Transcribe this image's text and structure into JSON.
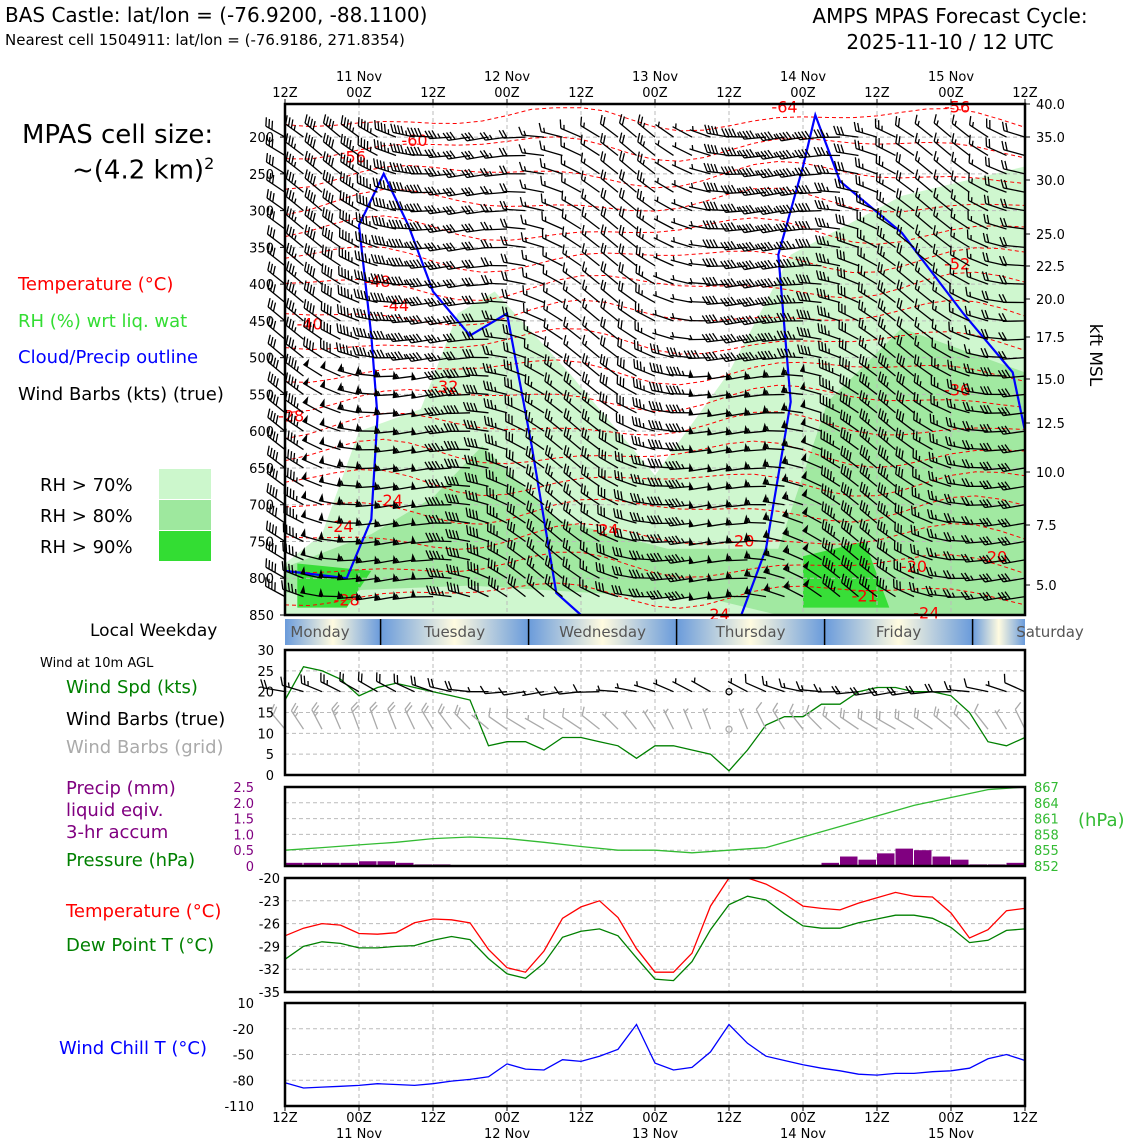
{
  "header": {
    "title_left": "BAS Castle: lat/lon = (-76.9200, -88.1100)",
    "subtitle_left": "Nearest cell 1504911: lat/lon = (-76.9186, 271.8354)",
    "cycle_line1": "AMPS MPAS Forecast Cycle:",
    "cycle_line2": "2025-11-10 / 12 UTC"
  },
  "cell_size": {
    "label": "MPAS cell size:",
    "value": "~(4.2 km)",
    "superscript": "2"
  },
  "legend_main": {
    "temperature": "Temperature (°C)",
    "rh": "RH (%) wrt liq. wat",
    "cloud": "Cloud/Precip outline",
    "wind": "Wind Barbs (kts) (true)",
    "colors": {
      "temperature": "#ff0000",
      "rh": "#33dd33",
      "cloud": "#0000ff",
      "wind": "#000000"
    }
  },
  "rh_legend": [
    {
      "label": "RH > 70%",
      "color": "#ccf7cc"
    },
    {
      "label": "RH > 80%",
      "color": "#9ee89e"
    },
    {
      "label": "RH > 90%",
      "color": "#33dd33"
    }
  ],
  "time_axis": {
    "top_labels": [
      "12Z",
      "00Z",
      "12Z",
      "00Z",
      "12Z",
      "00Z",
      "12Z",
      "00Z",
      "12Z",
      "00Z",
      "12Z"
    ],
    "date_labels": [
      "11 Nov",
      "12 Nov",
      "13 Nov",
      "14 Nov",
      "15 Nov"
    ],
    "hours": [
      0,
      12,
      24,
      36,
      48,
      60,
      72,
      84,
      96,
      108,
      120
    ]
  },
  "weekday": {
    "label": "Local Weekday",
    "days": [
      "Monday",
      "Tuesday",
      "Wednesday",
      "Thursday",
      "Friday",
      "Saturday"
    ]
  },
  "wind10m": {
    "title": "Wind at 10m AGL",
    "legend": [
      "Wind Spd (kts)",
      "Wind Barbs (true)",
      "Wind Barbs (grid)"
    ],
    "legend_colors": [
      "#008000",
      "#000000",
      "#aaaaaa"
    ]
  },
  "precip_legend": [
    "Precip (mm)",
    "liquid eqiv.",
    "3-hr accum"
  ],
  "pressure_legend": "Pressure (hPa)",
  "pressure_unit": "(hPa)",
  "tempdew_legend": [
    "Temperature (°C)",
    "Dew Point T (°C)"
  ],
  "windchill_legend": "Wind Chill T (°C)",
  "chart_data": [
    {
      "type": "heatmap",
      "name": "cross-section",
      "y_pressure_ticks": [
        200,
        250,
        300,
        350,
        400,
        450,
        500,
        550,
        600,
        650,
        700,
        750,
        800,
        850
      ],
      "y_right_kft": [
        "40.0",
        "35.0",
        "30.0",
        "25.0",
        "22.5",
        "20.0",
        "17.5",
        "15.0",
        "12.5",
        "10.0",
        "7.5",
        "5.0"
      ],
      "y_right_label": "kft MSL",
      "temperature_labels": [
        {
          "text": "-56",
          "h": 11,
          "p": 228
        },
        {
          "text": "-60",
          "h": 21,
          "p": 205
        },
        {
          "text": "-48",
          "h": 15,
          "p": 397
        },
        {
          "text": "-44",
          "h": 18,
          "p": 430
        },
        {
          "text": "-40",
          "h": 4,
          "p": 455
        },
        {
          "text": "-32",
          "h": 26,
          "p": 540
        },
        {
          "text": "-28",
          "h": 1,
          "p": 580
        },
        {
          "text": "-24",
          "h": 17,
          "p": 695
        },
        {
          "text": "-24",
          "h": 9,
          "p": 730
        },
        {
          "text": "-24",
          "h": 52,
          "p": 735
        },
        {
          "text": "-20",
          "h": 74,
          "p": 750
        },
        {
          "text": "-20",
          "h": 102,
          "p": 785
        },
        {
          "text": "-20",
          "h": 115,
          "p": 772
        },
        {
          "text": "-24",
          "h": 104,
          "p": 848
        },
        {
          "text": "-28",
          "h": 10,
          "p": 830
        },
        {
          "text": "-64",
          "h": 81,
          "p": 148
        },
        {
          "text": "-56",
          "h": 109,
          "p": 157
        },
        {
          "text": "-52",
          "h": 109,
          "p": 373
        },
        {
          "text": "-36",
          "h": 109,
          "p": 545
        },
        {
          "text": "-21",
          "h": 94,
          "p": 825
        },
        {
          "text": "-24",
          "h": 70,
          "p": 862
        }
      ]
    },
    {
      "type": "line",
      "name": "wind-speed-10m",
      "ylim": [
        0,
        30
      ],
      "yticks": [
        0,
        5,
        10,
        15,
        20,
        25,
        30
      ],
      "x": [
        0,
        3,
        6,
        9,
        12,
        15,
        18,
        21,
        24,
        27,
        30,
        33,
        36,
        39,
        42,
        45,
        48,
        51,
        54,
        57,
        60,
        63,
        66,
        69,
        72,
        75,
        78,
        81,
        84,
        87,
        90,
        93,
        96,
        99,
        102,
        105,
        108,
        111,
        114,
        117,
        120
      ],
      "values": [
        18,
        26,
        25,
        23,
        19,
        21,
        22,
        21,
        20,
        19,
        18,
        7,
        8,
        8,
        6,
        9,
        9,
        8,
        7,
        4,
        7,
        7,
        6,
        5,
        1,
        6,
        12,
        14,
        14,
        17,
        17,
        20,
        21,
        21,
        20,
        20,
        19,
        15,
        8,
        7,
        9
      ]
    },
    {
      "type": "bar",
      "name": "precip-3hr",
      "ylim": [
        0,
        2.5
      ],
      "yticks": [
        0,
        0.5,
        1.0,
        1.5,
        2.0,
        2.5
      ],
      "x": [
        3,
        6,
        9,
        12,
        15,
        18,
        21,
        24,
        27,
        30,
        33,
        36,
        39,
        42,
        45,
        48,
        51,
        54,
        57,
        60,
        63,
        66,
        69,
        72,
        75,
        78,
        81,
        84,
        87,
        90,
        93,
        96,
        99,
        102,
        105,
        108,
        111,
        114,
        117,
        120
      ],
      "values": [
        0.1,
        0.1,
        0.1,
        0.1,
        0.15,
        0.15,
        0.1,
        0.05,
        0.05,
        0,
        0,
        0,
        0,
        0,
        0,
        0,
        0,
        0,
        0,
        0,
        0,
        0,
        0,
        0,
        0,
        0,
        0,
        0,
        0,
        0.1,
        0.3,
        0.2,
        0.4,
        0.55,
        0.5,
        0.3,
        0.2,
        0.05,
        0.05,
        0.1
      ],
      "color": "#800080"
    },
    {
      "type": "line",
      "name": "pressure",
      "ylim": [
        852,
        867
      ],
      "yticks": [
        852,
        855,
        858,
        861,
        864,
        867
      ],
      "x": [
        0,
        6,
        12,
        18,
        24,
        30,
        36,
        42,
        48,
        54,
        60,
        66,
        72,
        78,
        84,
        90,
        96,
        102,
        108,
        114,
        120
      ],
      "values": [
        855.0,
        855.5,
        856.0,
        856.5,
        857.2,
        857.5,
        857.2,
        856.5,
        855.7,
        855.0,
        855.0,
        854.5,
        855.0,
        855.5,
        857.5,
        859.5,
        861.5,
        863.5,
        865.0,
        866.5,
        867.0
      ]
    },
    {
      "type": "line",
      "name": "temperature-dewpoint",
      "ylim": [
        -35,
        -20
      ],
      "yticks": [
        -35,
        -32,
        -29,
        -26,
        -23,
        -20
      ],
      "x": [
        0,
        3,
        6,
        9,
        12,
        15,
        18,
        21,
        24,
        27,
        30,
        33,
        36,
        39,
        42,
        45,
        48,
        51,
        54,
        57,
        60,
        63,
        66,
        69,
        72,
        75,
        78,
        81,
        84,
        87,
        90,
        93,
        96,
        99,
        102,
        105,
        108,
        111,
        114,
        117,
        120
      ],
      "series": [
        {
          "name": "Temperature (°C)",
          "color": "#ff0000",
          "values": [
            -27.6,
            -26.6,
            -26.0,
            -26.2,
            -27.3,
            -27.4,
            -27.2,
            -25.9,
            -25.4,
            -25.5,
            -25.9,
            -29.4,
            -31.8,
            -32.4,
            -29.6,
            -25.3,
            -23.8,
            -23.0,
            -25.2,
            -29.3,
            -32.4,
            -32.4,
            -29.9,
            -23.7,
            -20.0,
            -20.0,
            -20.8,
            -22.1,
            -23.7,
            -24.0,
            -24.2,
            -23.3,
            -22.6,
            -21.9,
            -22.4,
            -22.5,
            -24.6,
            -27.9,
            -26.8,
            -24.3,
            -24.0
          ]
        },
        {
          "name": "Dew Point T (°C)",
          "color": "#008000",
          "values": [
            -30.7,
            -29.0,
            -28.4,
            -28.6,
            -29.2,
            -29.2,
            -29.0,
            -28.9,
            -28.2,
            -27.7,
            -28.1,
            -30.6,
            -32.6,
            -33.2,
            -31.2,
            -27.8,
            -27.0,
            -26.7,
            -27.6,
            -30.5,
            -33.3,
            -33.5,
            -31.0,
            -26.8,
            -23.5,
            -22.4,
            -22.9,
            -24.7,
            -26.3,
            -26.6,
            -26.6,
            -25.9,
            -25.4,
            -24.9,
            -24.9,
            -25.3,
            -26.5,
            -28.5,
            -28.2,
            -26.9,
            -26.7
          ]
        }
      ]
    },
    {
      "type": "line",
      "name": "wind-chill",
      "ylim": [
        -110,
        10
      ],
      "yticks": [
        -110,
        -80,
        -50,
        -20,
        10
      ],
      "x": [
        0,
        3,
        6,
        9,
        12,
        15,
        18,
        21,
        24,
        27,
        30,
        33,
        36,
        39,
        42,
        45,
        48,
        51,
        54,
        57,
        60,
        63,
        66,
        69,
        72,
        75,
        78,
        81,
        84,
        87,
        90,
        93,
        96,
        99,
        102,
        105,
        108,
        111,
        114,
        117,
        120
      ],
      "values": [
        -83,
        -89,
        -88,
        -87,
        -86,
        -84,
        -85,
        -86,
        -84,
        -81,
        -79,
        -76,
        -61,
        -67,
        -68,
        -56,
        -58,
        -52,
        -44,
        -15,
        -60,
        -68,
        -65,
        -47,
        -15,
        -37,
        -52,
        -57,
        -62,
        -66,
        -69,
        -73,
        -74,
        -72,
        -72,
        -70,
        -69,
        -66,
        -55,
        -50,
        -57
      ],
      "color": "#0000ff"
    }
  ]
}
